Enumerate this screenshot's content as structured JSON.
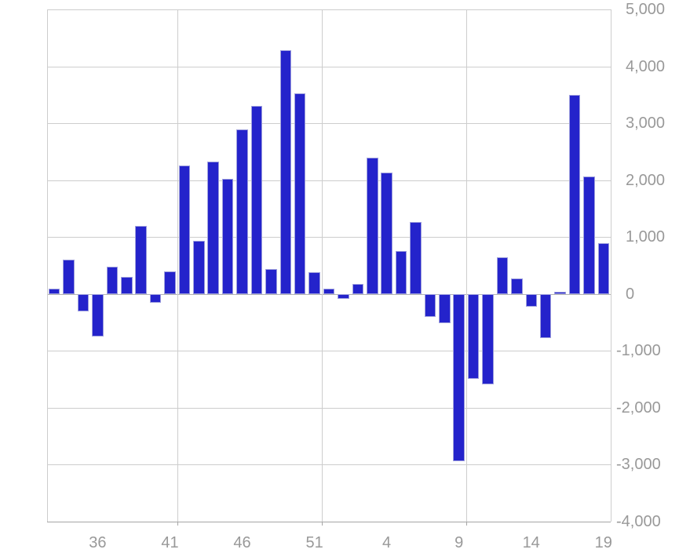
{
  "chart_data": {
    "type": "bar",
    "title": "",
    "xlabel": "",
    "ylabel": "",
    "legend": "none",
    "grid": true,
    "categories": [
      "33",
      "34",
      "35",
      "36",
      "37",
      "38",
      "39",
      "40",
      "41",
      "42",
      "43",
      "44",
      "45",
      "46",
      "47",
      "48",
      "49",
      "50",
      "51",
      "52",
      "1",
      "2",
      "3",
      "4",
      "5",
      "6",
      "7",
      "8",
      "9",
      "10",
      "11",
      "12",
      "13",
      "14",
      "15",
      "16",
      "17",
      "18",
      "19"
    ],
    "values": [
      100,
      600,
      -300,
      -750,
      480,
      300,
      1200,
      -150,
      400,
      2260,
      930,
      2330,
      2020,
      2890,
      3310,
      440,
      4290,
      3520,
      390,
      100,
      -80,
      180,
      2400,
      2140,
      750,
      1260,
      -410,
      -520,
      -2940,
      -1490,
      -1590,
      650,
      280,
      -220,
      -780,
      40,
      3500,
      2060,
      890
    ],
    "x_axis": {
      "shown_tick_labels": [
        "36",
        "41",
        "46",
        "51",
        "4",
        "9",
        "14",
        "19"
      ],
      "vertical_gridline_slot_boundaries": [
        9,
        19,
        29
      ]
    },
    "y_axis": {
      "min": -4000,
      "max": 5000,
      "interval": 1000,
      "side": "right",
      "tick_labels": [
        "5,000",
        "4,000",
        "3,000",
        "2,000",
        "1,000",
        "0",
        "-1,000",
        "-2,000",
        "-3,000",
        "-4,000"
      ]
    },
    "style": {
      "bar_color": "#2423cb",
      "bar_border_color": "#9e9fdd",
      "gridline_color": "#cdcdcd",
      "zero_line_color": "#b3b3b3",
      "axis_line_color": "#a6a6a6",
      "label_color": "#999999",
      "background_color": "#ffffff"
    }
  }
}
